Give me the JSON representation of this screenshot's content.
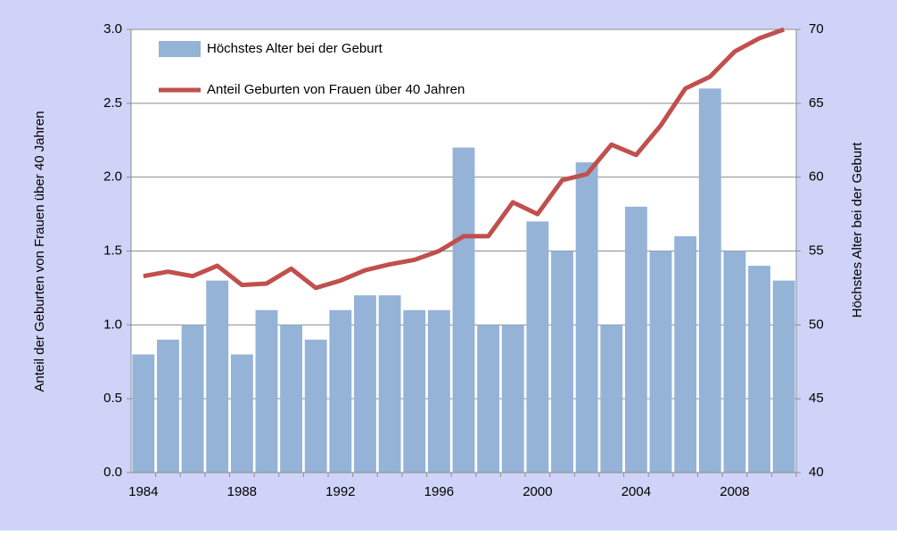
{
  "chart_data": {
    "type": "bar-line",
    "x": [
      1984,
      1985,
      1986,
      1987,
      1988,
      1989,
      1990,
      1991,
      1992,
      1993,
      1994,
      1995,
      1996,
      1997,
      1998,
      1999,
      2000,
      2001,
      2002,
      2003,
      2004,
      2005,
      2006,
      2007,
      2008,
      2009,
      2010
    ],
    "xlim": [
      1983.5,
      2010.5
    ],
    "xticks": [
      1984,
      1988,
      1992,
      1996,
      2000,
      2004,
      2008
    ],
    "ylabel": "Anteil der  Geburten von Frauen über 40 Jahren",
    "y2label": "Höchstes Alter bei der Geburt",
    "ylim": [
      0,
      3
    ],
    "yticks": [
      {
        "value": 0,
        "label": "0.0"
      },
      {
        "value": 0.5,
        "label": "0.5"
      },
      {
        "value": 1,
        "label": "1.0"
      },
      {
        "value": 1.5,
        "label": "1.5"
      },
      {
        "value": 2,
        "label": "2.0"
      },
      {
        "value": 2.5,
        "label": "2.5"
      },
      {
        "value": 3,
        "label": "3.0"
      }
    ],
    "y2lim": [
      40,
      70
    ],
    "y2ticks": [
      40,
      45,
      50,
      55,
      60,
      65,
      70
    ],
    "grid": true,
    "legend": "upper left",
    "series": [
      {
        "name": "Höchstes Alter bei der Geburt",
        "type": "bar",
        "axis": "y2",
        "color": "#95b3d7",
        "values": [
          48,
          49,
          50,
          53,
          48,
          51,
          50,
          49,
          51,
          52,
          52,
          51,
          51,
          62,
          50,
          50,
          57,
          55,
          61,
          50,
          58,
          55,
          56,
          66,
          55,
          54,
          53
        ]
      },
      {
        "name": "Anteil Geburten von Frauen über 40 Jahren",
        "type": "line",
        "axis": "y",
        "color": "#c0504d",
        "values": [
          1.33,
          1.36,
          1.33,
          1.4,
          1.27,
          1.28,
          1.38,
          1.25,
          1.3,
          1.37,
          1.41,
          1.44,
          1.5,
          1.6,
          1.6,
          1.83,
          1.75,
          1.98,
          2.02,
          2.22,
          2.15,
          2.35,
          2.6,
          2.68,
          2.85,
          2.94,
          3.0
        ]
      }
    ]
  }
}
